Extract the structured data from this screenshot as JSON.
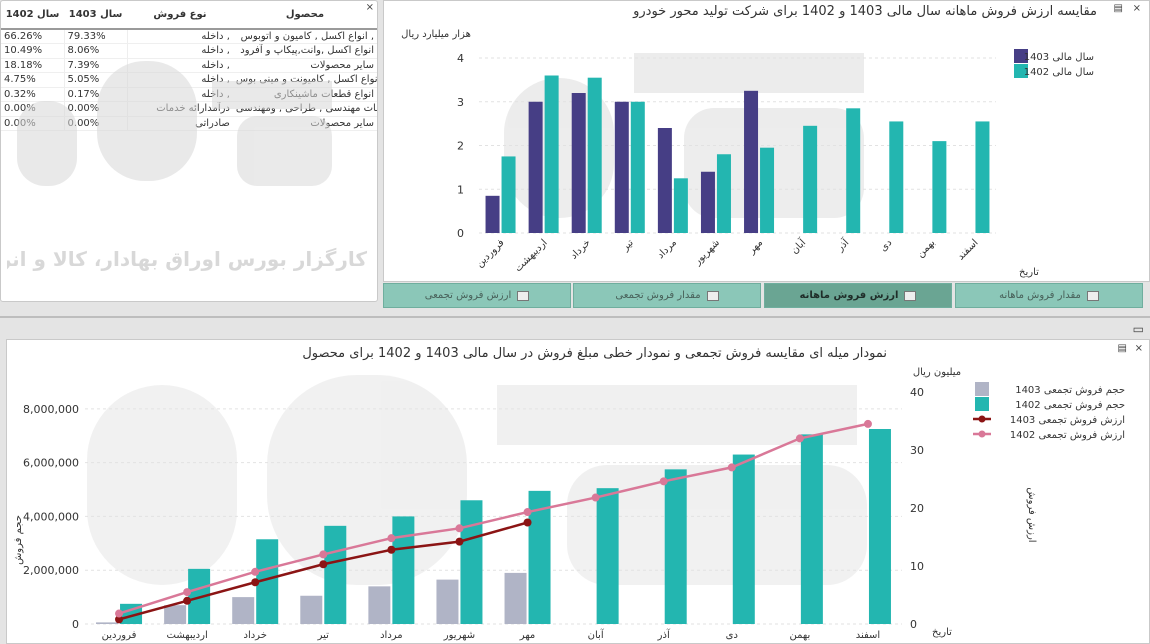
{
  "table": {
    "headers": {
      "col_1402": "سال 1402",
      "col_1403": "سال 1403",
      "type": "نوع فروش",
      "product": "محصول"
    },
    "rows": [
      {
        "v1402": "66.26%",
        "v1403": "79.33%",
        "type": "داخله ,",
        "product": "انواع اکسل , کامیون و اتوبوس ,"
      },
      {
        "v1402": "10.49%",
        "v1403": "8.06%",
        "type": "داخله ,",
        "product": "انواع اکسل ,وانت,پیکاپ و آفرود"
      },
      {
        "v1402": "18.18%",
        "v1403": "7.39%",
        "type": "داخله ,",
        "product": "سایر محصولات"
      },
      {
        "v1402": "4.75%",
        "v1403": "5.05%",
        "type": "داخله ,",
        "product": "انواع اکسل , کامیونت و مینی بوس ,"
      },
      {
        "v1402": "0.32%",
        "v1403": "0.17%",
        "type": "داخله ,",
        "product": "انواع قطعات ماشینکاری"
      },
      {
        "v1402": "0.00%",
        "v1403": "0.00%",
        "type": "درآمدارائه خدمات",
        "product": "خدمات مهندسی , طراحی , ومهندسی"
      },
      {
        "v1402": "0.00%",
        "v1403": "0.00%",
        "type": "صادراتی",
        "product": "سایر محصولات"
      }
    ]
  },
  "top_chart": {
    "title": "مقایسه ارزش فروش ماهانه سال مالی 1403 و 1402 برای شرکت تولید محور خودرو",
    "unit_label": "هزار میلیارد ریال",
    "x_axis_label": "تاریخ",
    "colors": {
      "s1403": "#463e85",
      "s1402": "#23b6b0"
    }
  },
  "tabs": [
    {
      "label": "مقدار فروش ماهانه",
      "active": false
    },
    {
      "label": "ارزش فروش ماهانه",
      "active": true
    },
    {
      "label": "مقدار فروش تجمعی",
      "active": false
    },
    {
      "label": "ارزش فروش تجمعی",
      "active": false
    }
  ],
  "bottom_chart": {
    "title": "نمودار میله ای مقایسه فروش تجمعی و نمودار خطی مبلغ فروش در سال مالی 1403 و 1402 برای محصول",
    "unit_label": "میلیون ریال",
    "left_axis_label": "حجم فروش",
    "right_axis_label": "ارزش فروش",
    "x_axis_label": "تاریخ",
    "colors": {
      "bar1403": "#b0b4c6",
      "bar1402": "#23b6b0",
      "line1403": "#8b1414",
      "line1402": "#d97898"
    }
  },
  "watermark": {
    "logo_text": "آگاه",
    "tagline": "کارگزار بورس اوراق بهادار، کالا و انرژی"
  },
  "chart_data": [
    {
      "type": "bar",
      "title": "مقایسه ارزش فروش ماهانه سال مالی 1403 و 1402 برای شرکت تولید محور خودرو",
      "xlabel": "تاریخ",
      "ylabel": "هزار میلیارد ریال",
      "ylim": [
        0,
        4
      ],
      "yticks": [
        0,
        1,
        2,
        3,
        4
      ],
      "legend_position": "top-right",
      "grid": true,
      "categories": [
        "فروردین",
        "اردیبهشت",
        "خرداد",
        "تیر",
        "مرداد",
        "شهریور",
        "مهر",
        "آبان",
        "آذر",
        "دی",
        "بهمن",
        "اسفند"
      ],
      "series": [
        {
          "name": "سال مالی 1403",
          "values": [
            0.85,
            3.0,
            3.2,
            3.0,
            2.4,
            1.4,
            3.25,
            null,
            null,
            null,
            null,
            null
          ]
        },
        {
          "name": "سال مالی 1402",
          "values": [
            1.75,
            3.6,
            3.55,
            3.0,
            1.25,
            1.8,
            1.95,
            2.45,
            2.85,
            2.55,
            2.1,
            2.55
          ]
        }
      ]
    },
    {
      "type": "bar",
      "title": "نمودار میله ای مقایسه فروش تجمعی و نمودار خطی مبلغ فروش در سال مالی 1403 و 1402 برای محصول",
      "xlabel": "تاریخ",
      "ylabel": "حجم فروش",
      "y2label": "ارزش فروش",
      "y2unit": "میلیون ریال",
      "ylim": [
        0,
        8700000
      ],
      "yticks": [
        0,
        2000000,
        4000000,
        6000000,
        8000000
      ],
      "ytick_labels": [
        "0",
        "2,000,000",
        "4,000,000",
        "6,000,000",
        "8,000,000"
      ],
      "y2lim": [
        0,
        40
      ],
      "y2ticks": [
        0,
        10,
        20,
        30,
        40
      ],
      "legend_position": "top-right",
      "grid": true,
      "categories": [
        "فروردین",
        "اردیبهشت",
        "خرداد",
        "تیر",
        "مرداد",
        "شهریور",
        "مهر",
        "آبان",
        "آذر",
        "دی",
        "بهمن",
        "اسفند"
      ],
      "series": [
        {
          "name": "حجم فروش تجمعی 1403",
          "kind": "bar",
          "axis": "left",
          "values": [
            60000,
            700000,
            1000000,
            1050000,
            1400000,
            1650000,
            1900000,
            null,
            null,
            null,
            null,
            null
          ]
        },
        {
          "name": "حجم فروش تجمعی 1402",
          "kind": "bar",
          "axis": "left",
          "values": [
            750000,
            2050000,
            3150000,
            3650000,
            4000000,
            4600000,
            4950000,
            5050000,
            5750000,
            6300000,
            7050000,
            7250000
          ]
        },
        {
          "name": "ارزش فروش تجمعی 1403",
          "kind": "line",
          "axis": "right",
          "values": [
            0.8,
            4.0,
            7.2,
            10.3,
            12.8,
            14.2,
            17.5,
            null,
            null,
            null,
            null,
            null
          ]
        },
        {
          "name": "ارزش فروش تجمعی 1402",
          "kind": "line",
          "axis": "right",
          "values": [
            1.8,
            5.5,
            9.0,
            12.0,
            14.8,
            16.5,
            19.3,
            21.8,
            24.6,
            27.0,
            32.0,
            34.5
          ]
        }
      ]
    }
  ]
}
